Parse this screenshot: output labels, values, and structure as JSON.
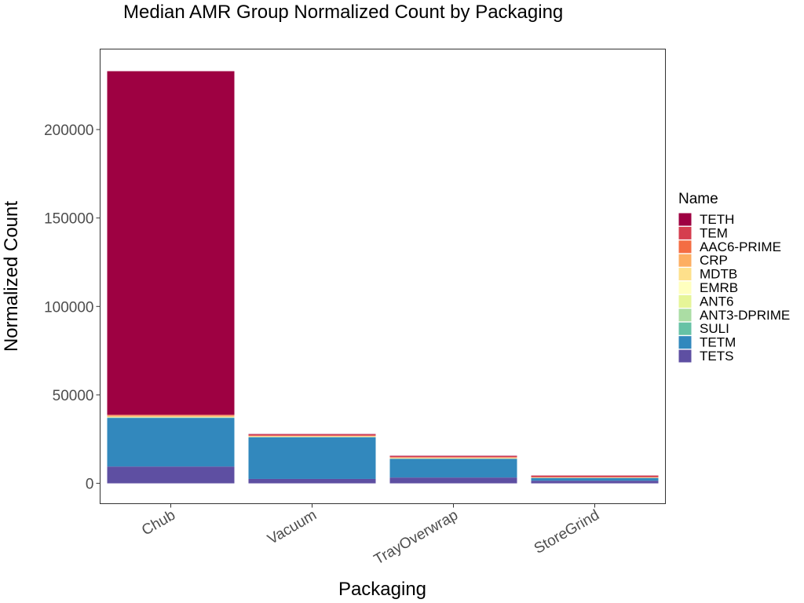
{
  "chart_data": {
    "type": "bar",
    "stacked": true,
    "title": "Median AMR Group Normalized Count by Packaging",
    "xlabel": "Packaging",
    "ylabel": "Normalized Count",
    "categories": [
      "Chub",
      "Vacuum",
      "TrayOverwrap",
      "StoreGrind"
    ],
    "ylim": [
      -11500,
      245500
    ],
    "yticks": [
      0,
      50000,
      100000,
      150000,
      200000
    ],
    "grid": false,
    "legend": {
      "title": "Name",
      "position": "right"
    },
    "series": [
      {
        "name": "TETS",
        "color": "#5E4FA2",
        "values": [
          9500,
          2500,
          3300,
          1500
        ]
      },
      {
        "name": "TETM",
        "color": "#3288BD",
        "values": [
          27500,
          23500,
          10500,
          1500
        ]
      },
      {
        "name": "SULI",
        "color": "#66C2A5",
        "values": [
          150,
          100,
          100,
          50
        ]
      },
      {
        "name": "ANT3-DPRIME",
        "color": "#ABDDA4",
        "values": [
          150,
          100,
          100,
          50
        ]
      },
      {
        "name": "ANT6",
        "color": "#E6F598",
        "values": [
          100,
          100,
          100,
          50
        ]
      },
      {
        "name": "EMRB",
        "color": "#FFFFBF",
        "values": [
          100,
          100,
          100,
          50
        ]
      },
      {
        "name": "MDTB",
        "color": "#FEE08B",
        "values": [
          200,
          100,
          100,
          50
        ]
      },
      {
        "name": "CRP",
        "color": "#FDAE61",
        "values": [
          600,
          300,
          300,
          150
        ]
      },
      {
        "name": "AAC6-PRIME",
        "color": "#F46D43",
        "values": [
          300,
          200,
          200,
          150
        ]
      },
      {
        "name": "TEM",
        "color": "#D53E4F",
        "values": [
          200,
          700,
          600,
          800
        ]
      },
      {
        "name": "TETH",
        "color": "#9E0142",
        "values": [
          194200,
          200,
          200,
          100
        ]
      }
    ],
    "legend_order": [
      "TETH",
      "TEM",
      "AAC6-PRIME",
      "CRP",
      "MDTB",
      "EMRB",
      "ANT6",
      "ANT3-DPRIME",
      "SULI",
      "TETM",
      "TETS"
    ]
  }
}
